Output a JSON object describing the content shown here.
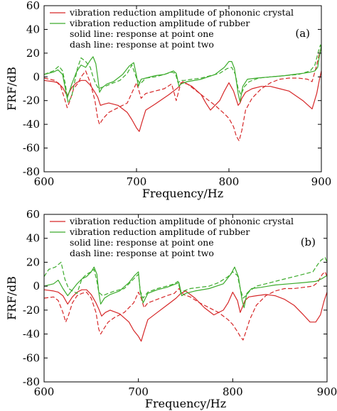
{
  "chart_data": [
    {
      "type": "line",
      "panel_label": "(a)",
      "xlabel": "Frequency/Hz",
      "ylabel": "FRF/dB",
      "xlim": [
        600,
        900
      ],
      "ylim": [
        -80,
        60
      ],
      "xticks": [
        600,
        700,
        800,
        900
      ],
      "yticks": [
        -80,
        -60,
        -40,
        -20,
        0,
        20,
        40,
        60
      ],
      "legend_position": "top-left",
      "legend": [
        {
          "label": "vibration reduction amplitude of phononic crystal",
          "color": "#d62728"
        },
        {
          "label": "vibration reduction amplitude of rubber",
          "color": "#3cab2c"
        },
        {
          "label": "solid line: response at point one",
          "color": ""
        },
        {
          "label": "dash line: response at point two",
          "color": ""
        }
      ],
      "series": [
        {
          "name": "phononic crystal, point one",
          "color": "#d62728",
          "dash": false,
          "x": [
            600,
            610,
            615,
            620,
            625,
            630,
            635,
            640,
            645,
            650,
            655,
            658,
            661,
            665,
            670,
            680,
            690,
            695,
            700,
            703,
            706,
            710,
            720,
            735,
            740,
            745,
            750,
            760,
            770,
            775,
            780,
            790,
            795,
            800,
            805,
            810,
            812,
            814,
            818,
            825,
            835,
            845,
            855,
            865,
            880,
            890,
            895,
            898,
            900
          ],
          "y": [
            -3,
            -4,
            -5,
            -9,
            -16,
            -9,
            -5,
            -3,
            -3,
            -7,
            -13,
            -17,
            -24,
            -23,
            -22,
            -24,
            -30,
            -36,
            -43,
            -46,
            -38,
            -28,
            -23,
            -15,
            -12,
            -9,
            -4,
            -8,
            -15,
            -22,
            -28,
            -20,
            -12,
            -5,
            -12,
            -24,
            -22,
            -18,
            -13,
            -10,
            -8,
            -8,
            -10,
            -12,
            -20,
            -27,
            -14,
            -2,
            5
          ]
        },
        {
          "name": "phononic crystal, point two",
          "color": "#d62728",
          "dash": true,
          "x": [
            600,
            612,
            618,
            622,
            625,
            628,
            632,
            637,
            640,
            645,
            650,
            655,
            658,
            660,
            664,
            670,
            680,
            690,
            700,
            702,
            705,
            710,
            720,
            730,
            738,
            743,
            748,
            755,
            765,
            775,
            785,
            795,
            800,
            805,
            808,
            811,
            814,
            818,
            825,
            835,
            845,
            855,
            865,
            875,
            885,
            890,
            895,
            898,
            900
          ],
          "y": [
            -1,
            -3,
            -8,
            -18,
            -26,
            -20,
            -10,
            -5,
            0,
            5,
            -5,
            -20,
            -35,
            -40,
            -35,
            -30,
            -26,
            -22,
            -5,
            -10,
            -18,
            -14,
            -12,
            -10,
            -6,
            -20,
            -5,
            -6,
            -12,
            -18,
            -24,
            -31,
            -35,
            -42,
            -50,
            -54,
            -45,
            -28,
            -18,
            -10,
            -5,
            -2,
            -1,
            -1,
            -2,
            -4,
            10,
            20,
            25
          ]
        },
        {
          "name": "rubber, point one",
          "color": "#3cab2c",
          "dash": false,
          "x": [
            600,
            610,
            615,
            620,
            625,
            630,
            635,
            640,
            645,
            650,
            653,
            656,
            658,
            660,
            663,
            668,
            675,
            685,
            692,
            697,
            700,
            702,
            705,
            710,
            720,
            730,
            740,
            743,
            746,
            748,
            755,
            770,
            785,
            795,
            800,
            803,
            806,
            810,
            812,
            815,
            820,
            830,
            845,
            860,
            870,
            880,
            888,
            893,
            896,
            898,
            900
          ],
          "y": [
            2,
            4,
            6,
            2,
            -18,
            -6,
            4,
            10,
            8,
            14,
            17,
            11,
            0,
            -13,
            -9,
            -6,
            -4,
            2,
            9,
            12,
            1,
            -8,
            -2,
            -1,
            1,
            2,
            5,
            3,
            -8,
            -6,
            -4,
            -2,
            2,
            8,
            13,
            13,
            7,
            -14,
            -21,
            -8,
            -2,
            -1,
            0,
            1,
            2,
            3,
            4,
            5,
            8,
            18,
            26
          ]
        },
        {
          "name": "rubber, point two",
          "color": "#3cab2c",
          "dash": true,
          "x": [
            600,
            610,
            616,
            620,
            623,
            626,
            630,
            636,
            640,
            645,
            650,
            653,
            656,
            659,
            662,
            666,
            672,
            682,
            690,
            695,
            700,
            704,
            710,
            720,
            730,
            738,
            742,
            745,
            748,
            752,
            760,
            770,
            780,
            790,
            798,
            803,
            807,
            810,
            813,
            817,
            822,
            832,
            845,
            860,
            875,
            888,
            893,
            897,
            899,
            900
          ],
          "y": [
            2,
            5,
            9,
            5,
            -6,
            -22,
            -16,
            7,
            16,
            13,
            8,
            0,
            -6,
            -10,
            -9,
            -8,
            -6,
            -3,
            3,
            10,
            -1,
            -6,
            -1,
            0,
            2,
            4,
            3,
            -5,
            -3,
            -3,
            -2,
            -1,
            1,
            3,
            7,
            8,
            2,
            -10,
            -15,
            -8,
            -4,
            -1,
            0,
            1,
            2,
            5,
            10,
            22,
            27,
            24
          ]
        }
      ]
    },
    {
      "type": "line",
      "panel_label": "(b)",
      "xlabel": "Frequency/Hz",
      "ylabel": "FRF/dB",
      "xlim": [
        600,
        900
      ],
      "ylim": [
        -80,
        60
      ],
      "xticks": [
        600,
        700,
        800,
        900
      ],
      "yticks": [
        -80,
        -60,
        -40,
        -20,
        0,
        20,
        40,
        60
      ],
      "legend_position": "top-left",
      "legend": [
        {
          "label": "vibration reduction amplitude of phononic crystal",
          "color": "#d62728"
        },
        {
          "label": "vibration reduction amplitude of rubber",
          "color": "#3cab2c"
        },
        {
          "label": "solid line: response at point one",
          "color": ""
        },
        {
          "label": "dash line: response at point two",
          "color": ""
        }
      ],
      "series": [
        {
          "name": "phononic crystal, point one",
          "color": "#d62728",
          "dash": false,
          "x": [
            600,
            610,
            615,
            620,
            625,
            630,
            635,
            640,
            645,
            650,
            655,
            658,
            661,
            665,
            670,
            680,
            690,
            695,
            700,
            703,
            706,
            710,
            720,
            730,
            735,
            740,
            745,
            750,
            760,
            770,
            780,
            790,
            795,
            800,
            805,
            808,
            810,
            813,
            817,
            825,
            835,
            845,
            855,
            865,
            875,
            882,
            888,
            893,
            897,
            900
          ],
          "y": [
            -3,
            -4,
            -5,
            -8,
            -15,
            -9,
            -5,
            -3,
            -3,
            -7,
            -14,
            -19,
            -25,
            -22,
            -20,
            -23,
            -30,
            -37,
            -42,
            -46,
            -38,
            -28,
            -22,
            -16,
            -13,
            -10,
            -6,
            -4,
            -10,
            -18,
            -24,
            -20,
            -14,
            -5,
            -12,
            -22,
            -18,
            -12,
            -9,
            -8,
            -7,
            -8,
            -11,
            -16,
            -24,
            -30,
            -30,
            -24,
            -12,
            -5
          ]
        },
        {
          "name": "phononic crystal, point two",
          "color": "#d62728",
          "dash": true,
          "x": [
            600,
            610,
            615,
            620,
            623,
            626,
            630,
            635,
            640,
            645,
            650,
            655,
            658,
            660,
            663,
            668,
            675,
            685,
            695,
            700,
            703,
            706,
            710,
            720,
            730,
            738,
            743,
            748,
            755,
            765,
            775,
            785,
            795,
            800,
            805,
            808,
            811,
            814,
            818,
            825,
            835,
            845,
            855,
            865,
            875,
            885,
            890,
            895,
            898,
            900
          ],
          "y": [
            -10,
            -9,
            -12,
            -22,
            -30,
            -24,
            -14,
            -8,
            -6,
            -5,
            -10,
            -22,
            -36,
            -40,
            -36,
            -30,
            -26,
            -22,
            -14,
            -5,
            -10,
            -18,
            -14,
            -11,
            -8,
            -6,
            -2,
            -7,
            -9,
            -14,
            -18,
            -22,
            -28,
            -32,
            -38,
            -42,
            -45,
            -38,
            -28,
            -16,
            -8,
            -4,
            -2,
            -2,
            -1,
            0,
            3,
            10,
            12,
            8
          ]
        },
        {
          "name": "rubber, point one",
          "color": "#3cab2c",
          "dash": false,
          "x": [
            600,
            610,
            615,
            620,
            625,
            630,
            635,
            640,
            645,
            650,
            653,
            656,
            658,
            660,
            664,
            670,
            680,
            690,
            696,
            700,
            702,
            705,
            710,
            720,
            730,
            740,
            743,
            746,
            750,
            760,
            775,
            790,
            798,
            802,
            806,
            810,
            812,
            815,
            820,
            830,
            845,
            860,
            875,
            888,
            894,
            898,
            900
          ],
          "y": [
            0,
            2,
            5,
            -2,
            -8,
            -3,
            2,
            6,
            8,
            12,
            16,
            10,
            -5,
            -15,
            -10,
            -7,
            -4,
            3,
            9,
            12,
            -5,
            -14,
            -6,
            -3,
            -1,
            2,
            3,
            -8,
            -6,
            -4,
            -2,
            2,
            10,
            16,
            8,
            -12,
            -18,
            -6,
            -2,
            -1,
            1,
            2,
            3,
            4,
            6,
            8,
            9
          ]
        },
        {
          "name": "rubber, point two",
          "color": "#3cab2c",
          "dash": true,
          "x": [
            600,
            605,
            612,
            618,
            622,
            626,
            630,
            635,
            640,
            645,
            650,
            653,
            656,
            658,
            662,
            668,
            675,
            685,
            695,
            700,
            702,
            705,
            710,
            720,
            730,
            738,
            742,
            745,
            748,
            755,
            765,
            775,
            785,
            795,
            800,
            805,
            808,
            811,
            814,
            818,
            825,
            835,
            845,
            855,
            865,
            875,
            885,
            890,
            894,
            898,
            900
          ],
          "y": [
            8,
            14,
            16,
            20,
            6,
            -2,
            -4,
            -6,
            6,
            10,
            12,
            14,
            4,
            -5,
            -8,
            -6,
            -4,
            -2,
            6,
            10,
            -4,
            -10,
            -5,
            -2,
            0,
            2,
            4,
            -6,
            -4,
            -2,
            -1,
            0,
            3,
            8,
            12,
            9,
            -2,
            -10,
            -8,
            -4,
            0,
            2,
            4,
            6,
            8,
            10,
            12,
            18,
            22,
            24,
            20
          ]
        }
      ]
    }
  ]
}
